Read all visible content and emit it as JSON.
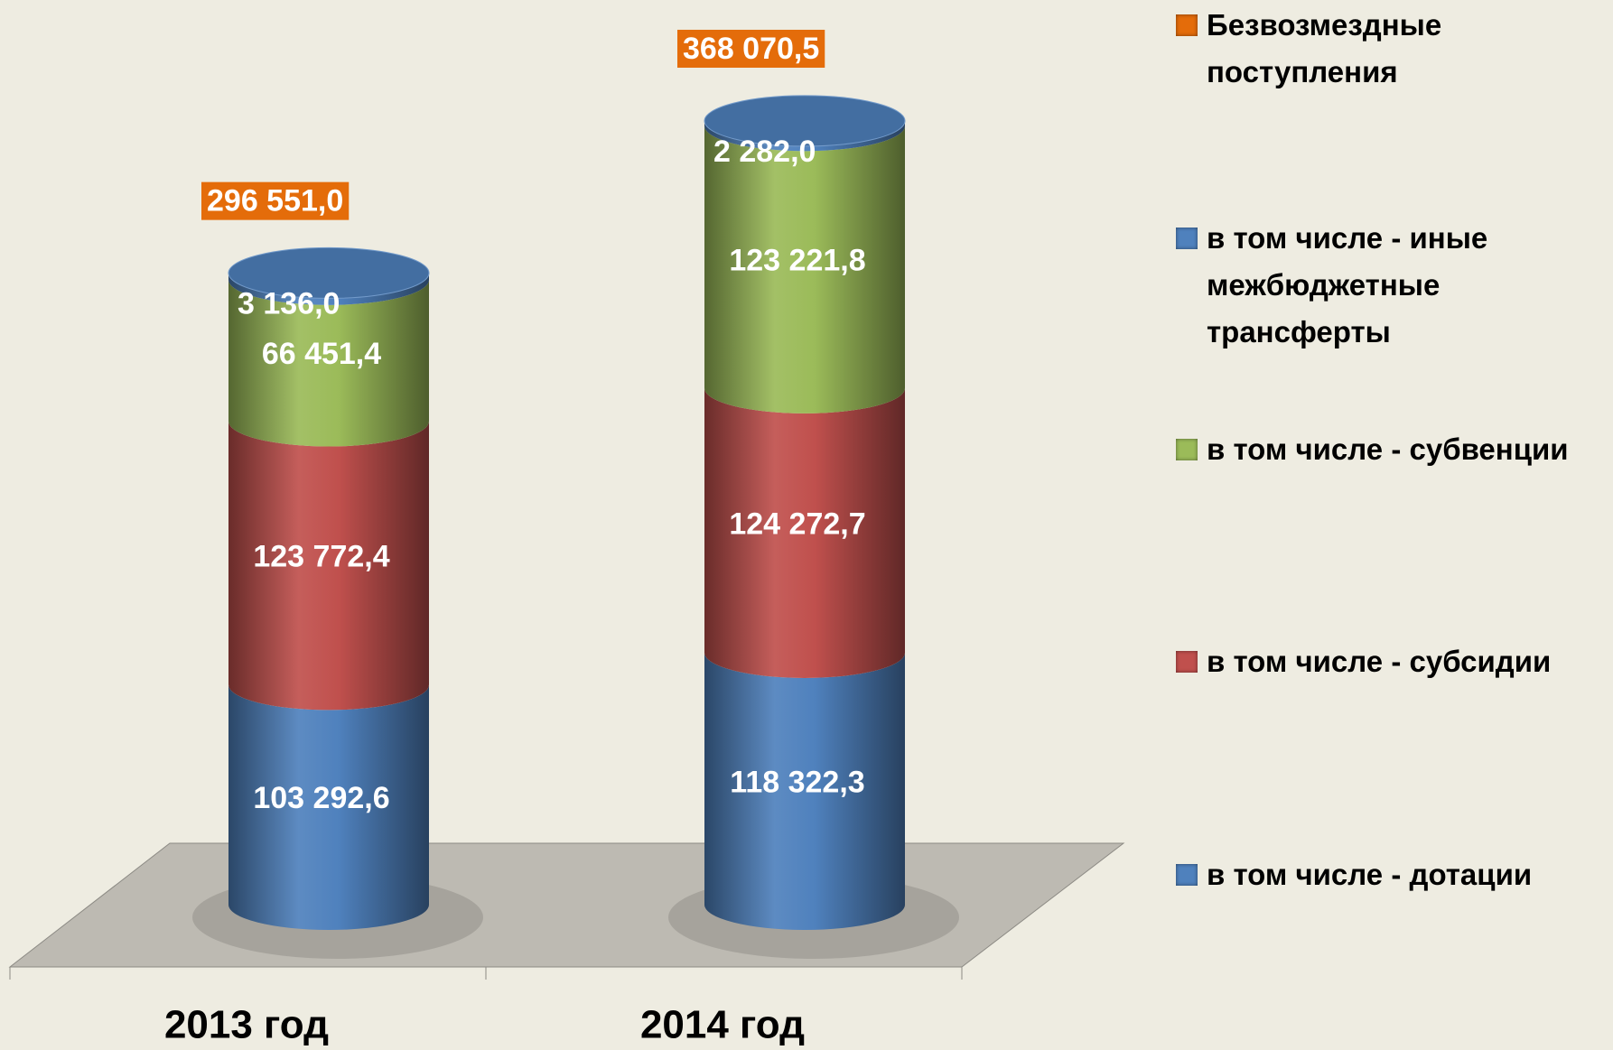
{
  "chart_data": {
    "type": "stacked-cylinder",
    "categories": [
      "2013 год",
      "2014 год"
    ],
    "series": [
      {
        "name": "в том числе - дотации",
        "color": "#4f81bd",
        "values": [
          103292.6,
          118322.3
        ],
        "value_labels": [
          "103 292,6",
          "118 322,3"
        ]
      },
      {
        "name": "в том числе - субсидии",
        "color": "#c0504d",
        "values": [
          123772.4,
          124272.7
        ],
        "value_labels": [
          "123 772,4",
          "124 272,7"
        ]
      },
      {
        "name": "в том числе - субвенции",
        "color": "#9bbb59",
        "values": [
          66451.4,
          123221.8
        ],
        "value_labels": [
          "66 451,4",
          "123 221,8"
        ]
      },
      {
        "name": "в том числе - иные межбюджетные трансферты",
        "color": "#4f81bd",
        "values": [
          3136.0,
          2282.0
        ],
        "value_labels": [
          "3 136,0",
          "2 282,0"
        ]
      }
    ],
    "totals": {
      "name": "Безвозмездные поступления",
      "color": "#e46c0a",
      "values": [
        296551.0,
        368070.5
      ],
      "value_labels": [
        "296 551,0",
        "368 070,5"
      ]
    }
  }
}
